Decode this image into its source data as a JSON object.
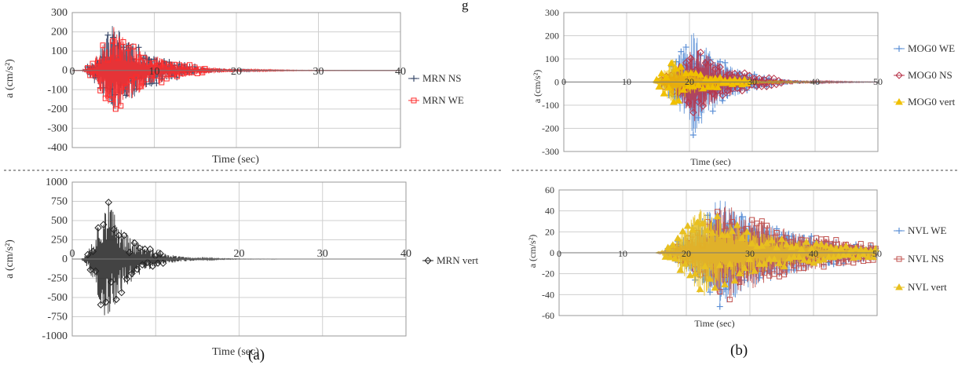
{
  "top_caption": "g",
  "panel_labels": {
    "a": "(a)",
    "b": "(b)"
  },
  "chart_data": [
    {
      "id": "tl",
      "type": "line",
      "xlabel": "Time (sec)",
      "ylabel": "a (cm/s²)",
      "xlim": [
        0,
        40
      ],
      "ylim": [
        -400,
        300
      ],
      "xticks": [
        0,
        10,
        20,
        30,
        40
      ],
      "yticks": [
        -400,
        -300,
        -200,
        -100,
        0,
        100,
        200,
        300
      ],
      "grid": true,
      "legend_position": "right",
      "series": [
        {
          "name": "MRN NS",
          "color": "#3a4a6b",
          "marker": "+",
          "onset": 1,
          "peak_time": 5,
          "peak": 260,
          "decay": 4.0,
          "end": 40,
          "seed": 11
        },
        {
          "name": "MRN WE",
          "color": "#ff2a2a",
          "marker": "square",
          "onset": 1,
          "peak_time": 5,
          "peak": 240,
          "decay": 4.5,
          "end": 40,
          "seed": 23
        }
      ]
    },
    {
      "id": "bl",
      "type": "line",
      "xlabel": "Time (sec)",
      "ylabel": "a (cm/s²)",
      "xlim": [
        0,
        40
      ],
      "ylim": [
        -1000,
        1000
      ],
      "xticks": [
        0,
        10,
        20,
        30,
        40
      ],
      "yticks": [
        -1000,
        -750,
        -500,
        -250,
        0,
        250,
        500,
        750,
        1000
      ],
      "grid": true,
      "legend_position": "right",
      "series": [
        {
          "name": "MRN vert",
          "color": "#222222",
          "marker": "diamond",
          "onset": 1,
          "peak_time": 4,
          "peak": 880,
          "decay": 2.8,
          "end": 40,
          "seed": 37
        }
      ]
    },
    {
      "id": "tr",
      "type": "line",
      "xlabel": "Time (sec)",
      "ylabel": "a (cm/s²)",
      "xlim": [
        0,
        50
      ],
      "ylim": [
        -300,
        300
      ],
      "xticks": [
        0,
        10,
        20,
        30,
        40,
        50
      ],
      "yticks": [
        -300,
        -200,
        -100,
        0,
        100,
        200,
        300
      ],
      "grid": true,
      "legend_position": "right",
      "series": [
        {
          "name": "MOG0 WE",
          "color": "#5b8fd6",
          "marker": "+",
          "onset": 14,
          "peak_time": 20.5,
          "peak": 240,
          "decay": 5.0,
          "end": 50,
          "seed": 41
        },
        {
          "name": "MOG0 NS",
          "color": "#b8344a",
          "marker": "diamond",
          "onset": 14,
          "peak_time": 20.8,
          "peak": 170,
          "decay": 5.5,
          "end": 50,
          "seed": 53
        },
        {
          "name": "MOG0 vert",
          "color": "#f0c000",
          "marker": "triangle",
          "onset": 14,
          "peak_time": 17,
          "peak": 110,
          "decay": 5.0,
          "end": 50,
          "seed": 67
        }
      ]
    },
    {
      "id": "br",
      "type": "line",
      "xlabel": "Time (sec)",
      "ylabel": "a (cm/s²)",
      "xlim": [
        0,
        50
      ],
      "ylim": [
        -60,
        60
      ],
      "xticks": [
        0,
        10,
        20,
        30,
        40,
        50
      ],
      "yticks": [
        -60,
        -40,
        -20,
        0,
        20,
        40,
        60
      ],
      "grid": true,
      "legend_position": "right",
      "series": [
        {
          "name": "NVL WE",
          "color": "#5b8fd6",
          "marker": "+",
          "onset": 15,
          "peak_time": 25,
          "peak": 54,
          "decay": 12.0,
          "end": 50,
          "seed": 71
        },
        {
          "name": "NVL NS",
          "color": "#c0504d",
          "marker": "square",
          "onset": 15,
          "peak_time": 26,
          "peak": 48,
          "decay": 13.0,
          "end": 50,
          "seed": 83
        },
        {
          "name": "NVL vert",
          "color": "#e8c020",
          "marker": "triangle",
          "onset": 15,
          "peak_time": 22,
          "peak": 44,
          "decay": 12.0,
          "end": 50,
          "seed": 97
        }
      ]
    }
  ]
}
